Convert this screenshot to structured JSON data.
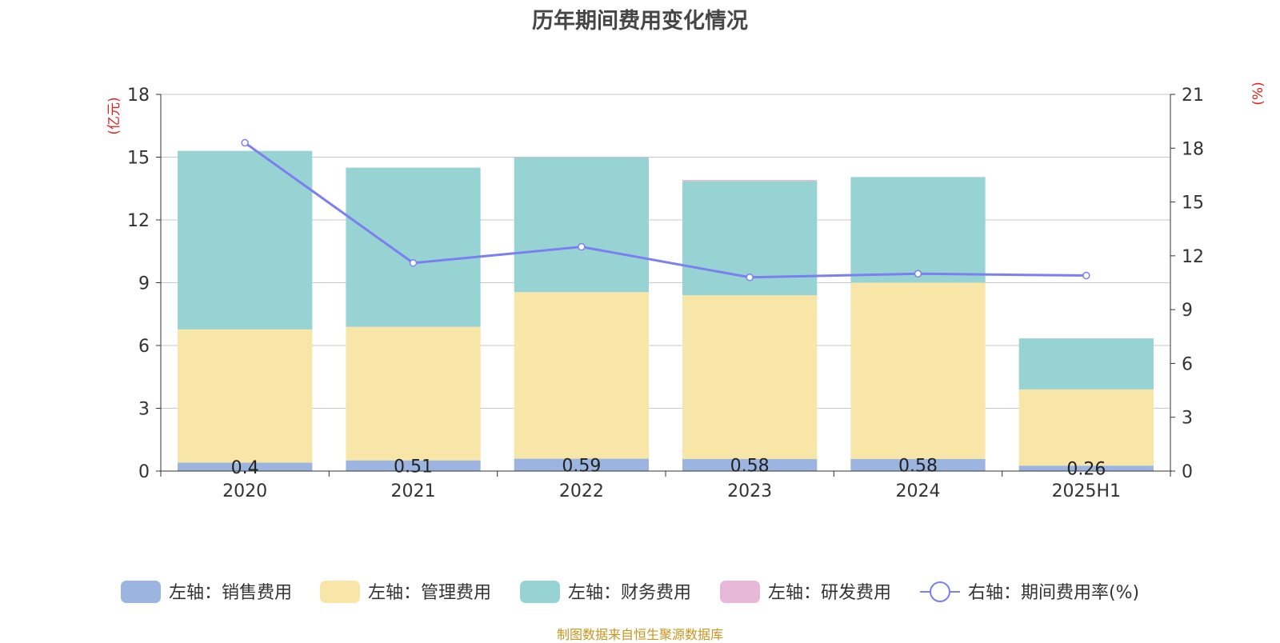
{
  "chart_data": {
    "type": "bar",
    "title": "历年期间费用变化情况",
    "categories": [
      "2020",
      "2021",
      "2022",
      "2023",
      "2024",
      "2025H1"
    ],
    "left_axis": {
      "unit_label": "(亿元)",
      "ylim": [
        0,
        18
      ],
      "ticks": [
        "0",
        "3",
        "6",
        "9",
        "12",
        "15",
        "18"
      ]
    },
    "right_axis": {
      "unit_label": "(%)",
      "ylim": [
        0,
        21
      ],
      "ticks": [
        "0",
        "3",
        "6",
        "9",
        "12",
        "15",
        "18",
        "21"
      ]
    },
    "stacked": true,
    "grid": true,
    "legend_position": "bottom",
    "series": [
      {
        "name": "左轴：销售费用",
        "type": "bar",
        "axis": "left",
        "color": "#9bb5e0",
        "values": [
          0.4,
          0.51,
          0.59,
          0.58,
          0.58,
          0.26
        ],
        "labels": [
          "0.4",
          "0.51",
          "0.59",
          "0.58",
          "0.58",
          "0.26"
        ]
      },
      {
        "name": "左轴：管理费用",
        "type": "bar",
        "axis": "left",
        "color": "#f7e6a8",
        "values": [
          6.37,
          6.38,
          7.96,
          7.82,
          8.42,
          3.64
        ]
      },
      {
        "name": "左轴：财务费用",
        "type": "bar",
        "axis": "left",
        "color": "#98d3d4",
        "values": [
          8.53,
          7.61,
          6.45,
          5.45,
          5.05,
          2.44
        ]
      },
      {
        "name": "左轴：研发费用",
        "type": "bar",
        "axis": "left",
        "color": "#e8b8d8",
        "values": [
          0,
          0,
          0.02,
          0.06,
          0,
          0
        ]
      },
      {
        "name": "右轴：期间费用率(%)",
        "type": "line",
        "axis": "right",
        "color": "#7b7ff0",
        "values": [
          18.3,
          11.6,
          12.5,
          10.8,
          11.0,
          10.9
        ]
      }
    ]
  },
  "footer": {
    "source": "制图数据来自恒生聚源数据库"
  }
}
